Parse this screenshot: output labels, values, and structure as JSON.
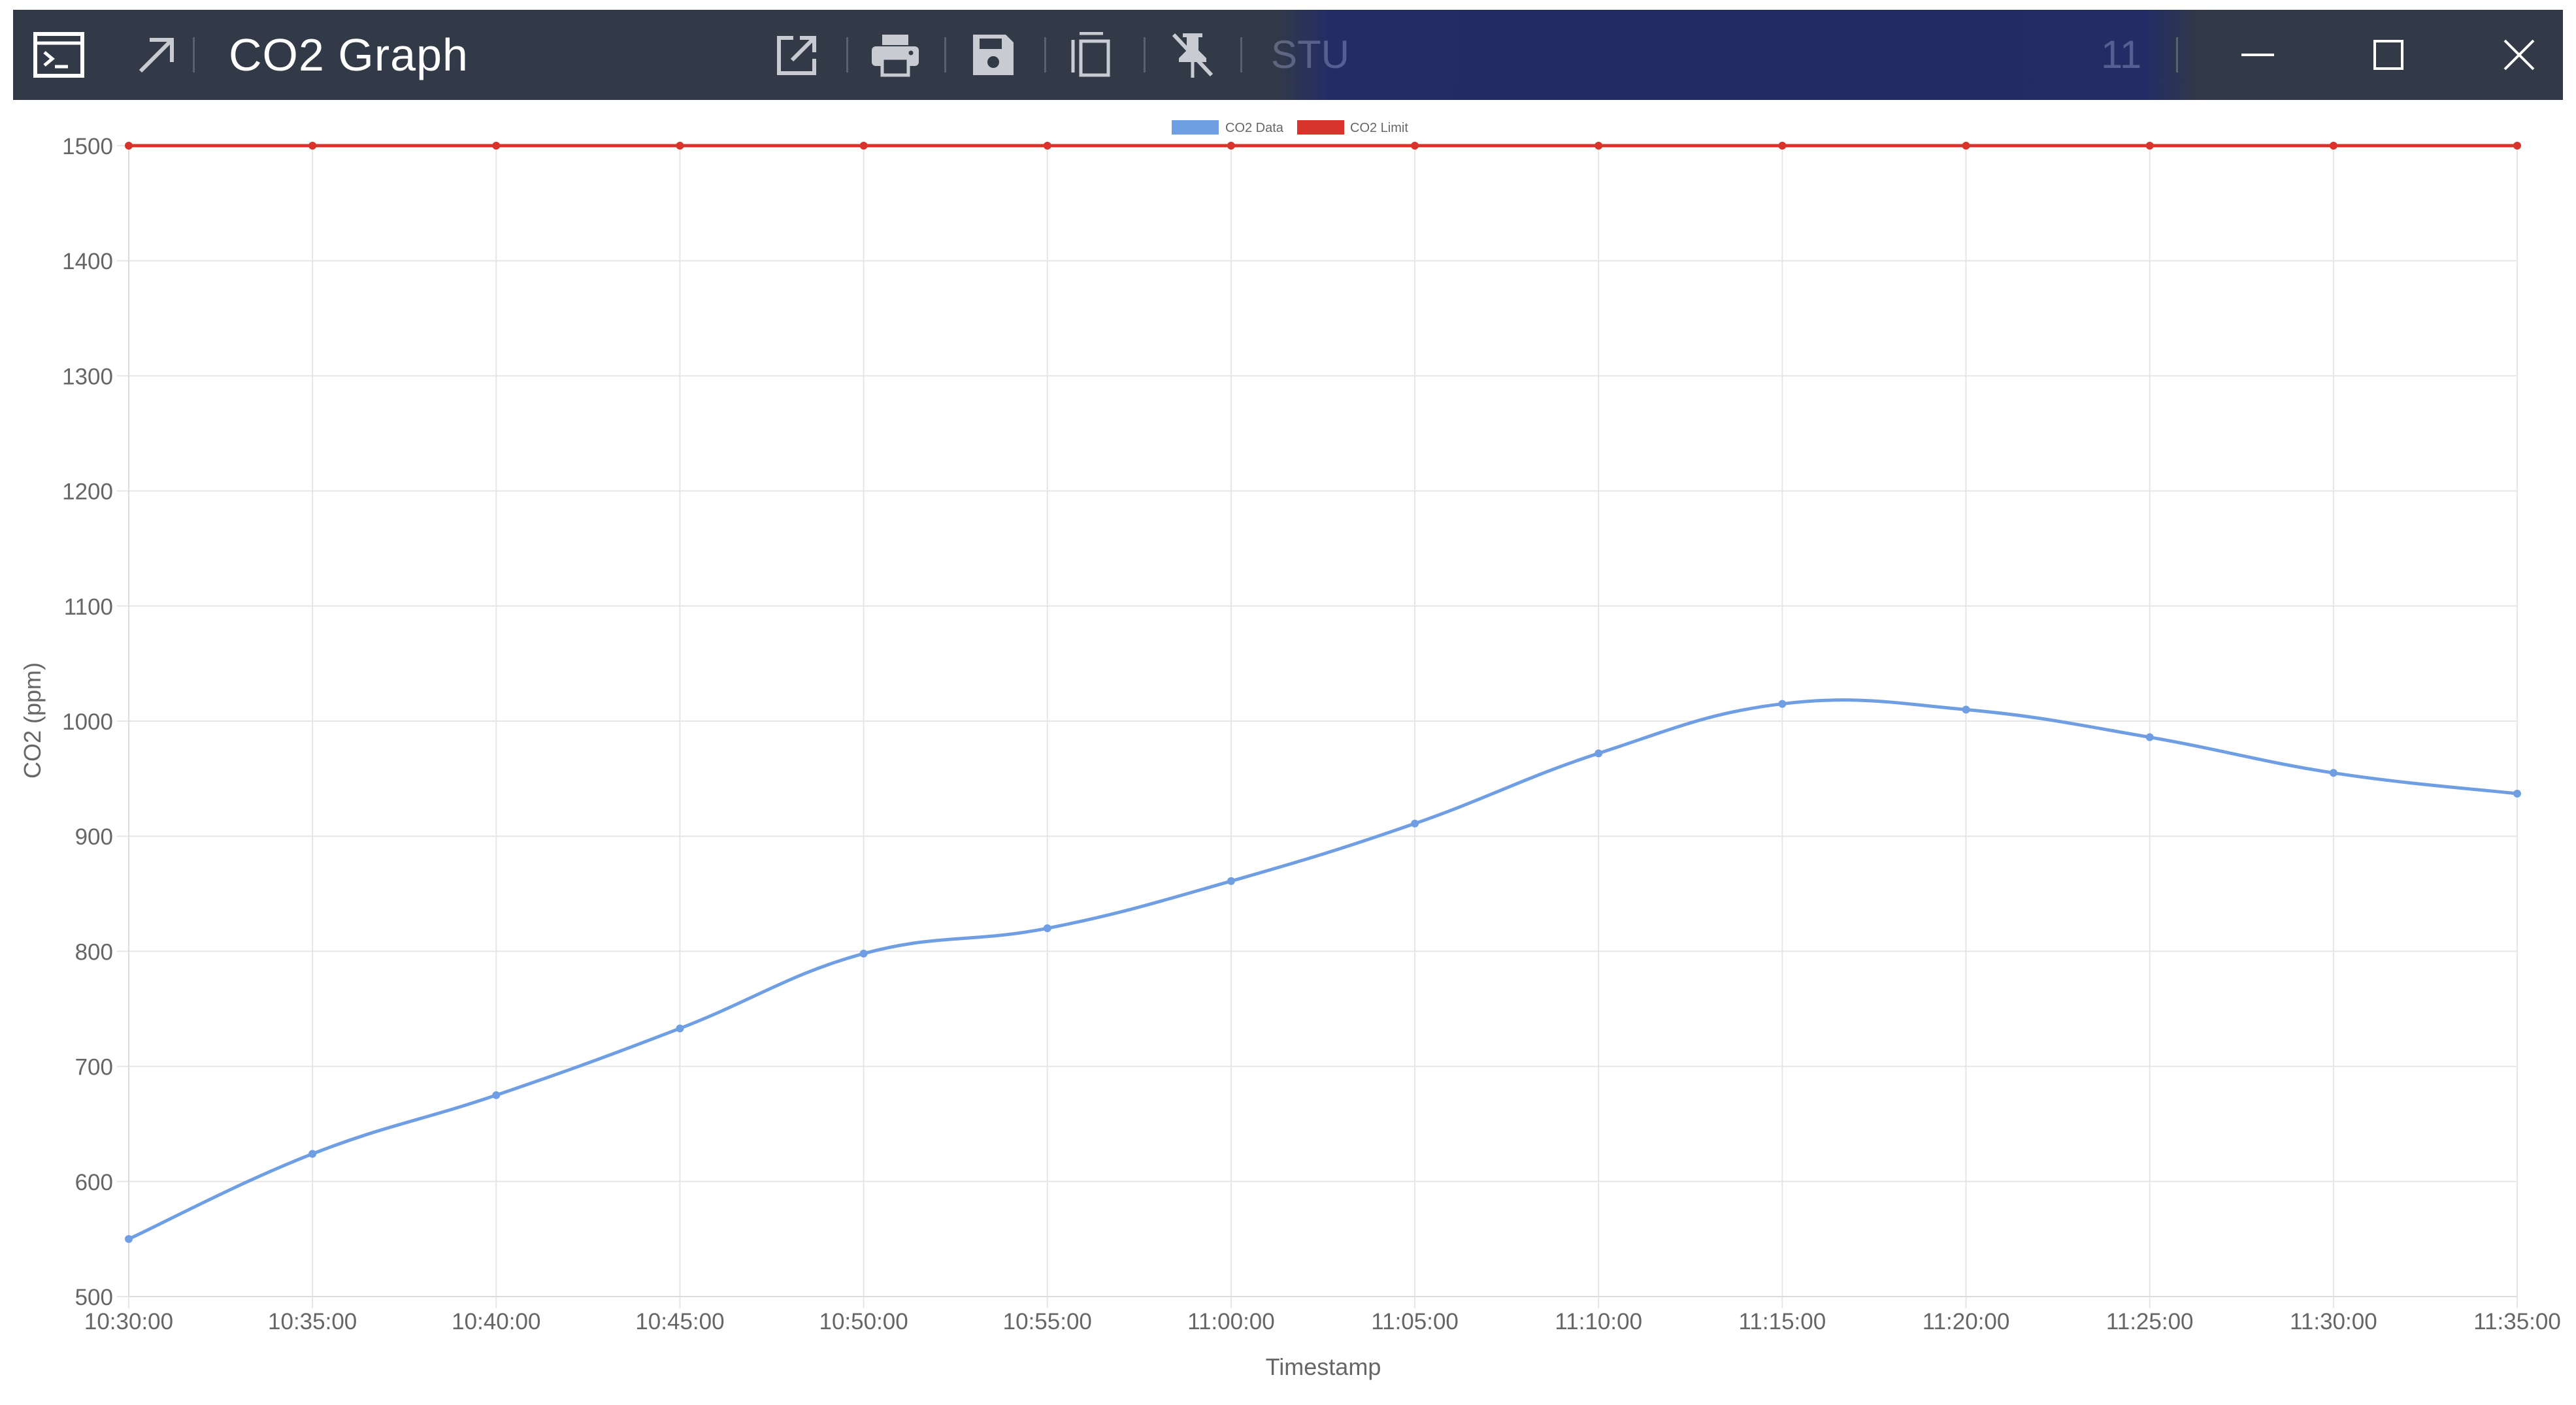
{
  "window": {
    "title": "CO2 Graph",
    "obscured_left": "STU",
    "obscured_right": "11"
  },
  "toolbar": {
    "icons": [
      "terminal-icon",
      "arrow-up-right-icon",
      "open-external-icon",
      "print-icon",
      "save-icon",
      "copy-icon",
      "unpin-icon",
      "minimize-icon",
      "maximize-icon",
      "close-icon"
    ]
  },
  "colors": {
    "titlebar": "#323a47",
    "co2_data": "#6f9ee2",
    "co2_limit": "#d9342b",
    "grid": "#e6e6e6",
    "axis_text": "#666666"
  },
  "chart_data": {
    "type": "line",
    "xlabel": "Timestamp",
    "ylabel": "CO2 (ppm)",
    "ylim": [
      500,
      1500
    ],
    "yticks": [
      500,
      600,
      700,
      800,
      900,
      1000,
      1100,
      1200,
      1300,
      1400,
      1500
    ],
    "x": [
      "10:30:00",
      "10:35:00",
      "10:40:00",
      "10:45:00",
      "10:50:00",
      "10:55:00",
      "11:00:00",
      "11:05:00",
      "11:10:00",
      "11:15:00",
      "11:20:00",
      "11:25:00",
      "11:30:00",
      "11:35:00"
    ],
    "series": [
      {
        "name": "CO2 Data",
        "color": "#6f9ee2",
        "values": [
          550,
          624,
          675,
          733,
          798,
          820,
          861,
          911,
          972,
          1015,
          1010,
          986,
          955,
          937
        ]
      },
      {
        "name": "CO2 Limit",
        "color": "#d9342b",
        "values": [
          1500,
          1500,
          1500,
          1500,
          1500,
          1500,
          1500,
          1500,
          1500,
          1500,
          1500,
          1500,
          1500,
          1500
        ]
      }
    ],
    "grid": true,
    "legend": "top-center"
  }
}
